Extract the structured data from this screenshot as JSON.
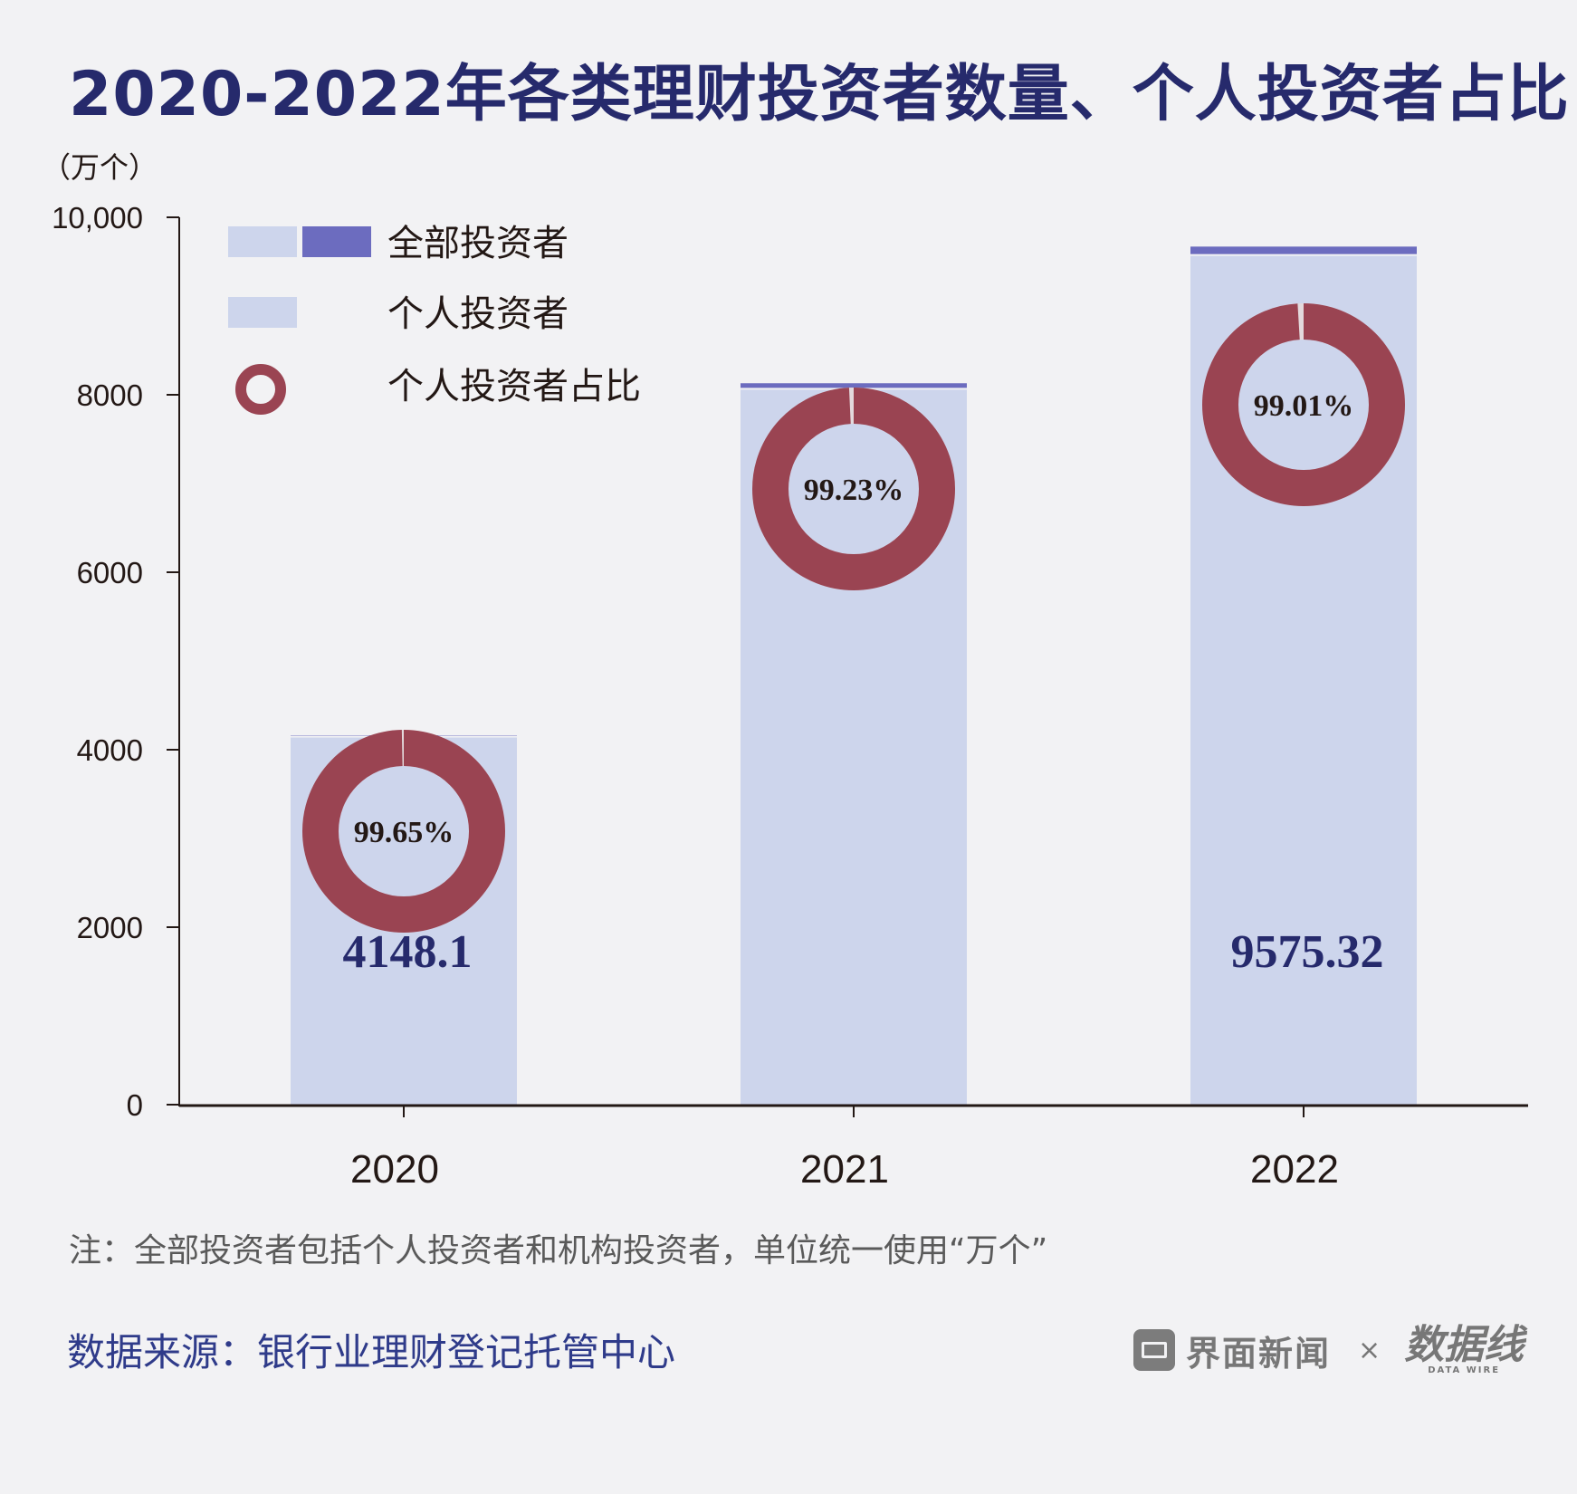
{
  "title": "2020-2022年各类理财投资者数量、个人投资者占比",
  "note": "注：全部投资者包括个人投资者和机构投资者，单位统一使用“万个”",
  "source": "数据来源：银行业理财登记托管中心",
  "brand": {
    "name": "界面新闻",
    "separator": "×",
    "logo": "数据线",
    "logo_sub": "DATA WIRE"
  },
  "colors": {
    "total": "#6c6cbf",
    "individual": "#cdd5ec",
    "ring": "#9a4452",
    "value_label": "#262a6c"
  },
  "chart_data": {
    "type": "bar",
    "unit_label": "（万个）",
    "categories": [
      "2020",
      "2021",
      "2022"
    ],
    "ylim": [
      0,
      10000
    ],
    "y_ticks": [
      0,
      2000,
      4000,
      6000,
      8000,
      10000
    ],
    "y_tick_labels": [
      "0",
      "2000",
      "4000",
      "6000",
      "8000",
      "10,000"
    ],
    "legend_position": "top-left",
    "series": [
      {
        "name": "全部投资者",
        "values": [
          4162.7,
          8130,
          9670
        ]
      },
      {
        "name": "个人投资者",
        "values": [
          4148.1,
          8067,
          9575.32
        ]
      },
      {
        "name": "个人投资者占比",
        "values": [
          99.65,
          99.23,
          99.01
        ],
        "labels": [
          "99.65%",
          "99.23%",
          "99.01%"
        ]
      }
    ],
    "value_labels": [
      "4148.1",
      "",
      "9575.32"
    ]
  }
}
